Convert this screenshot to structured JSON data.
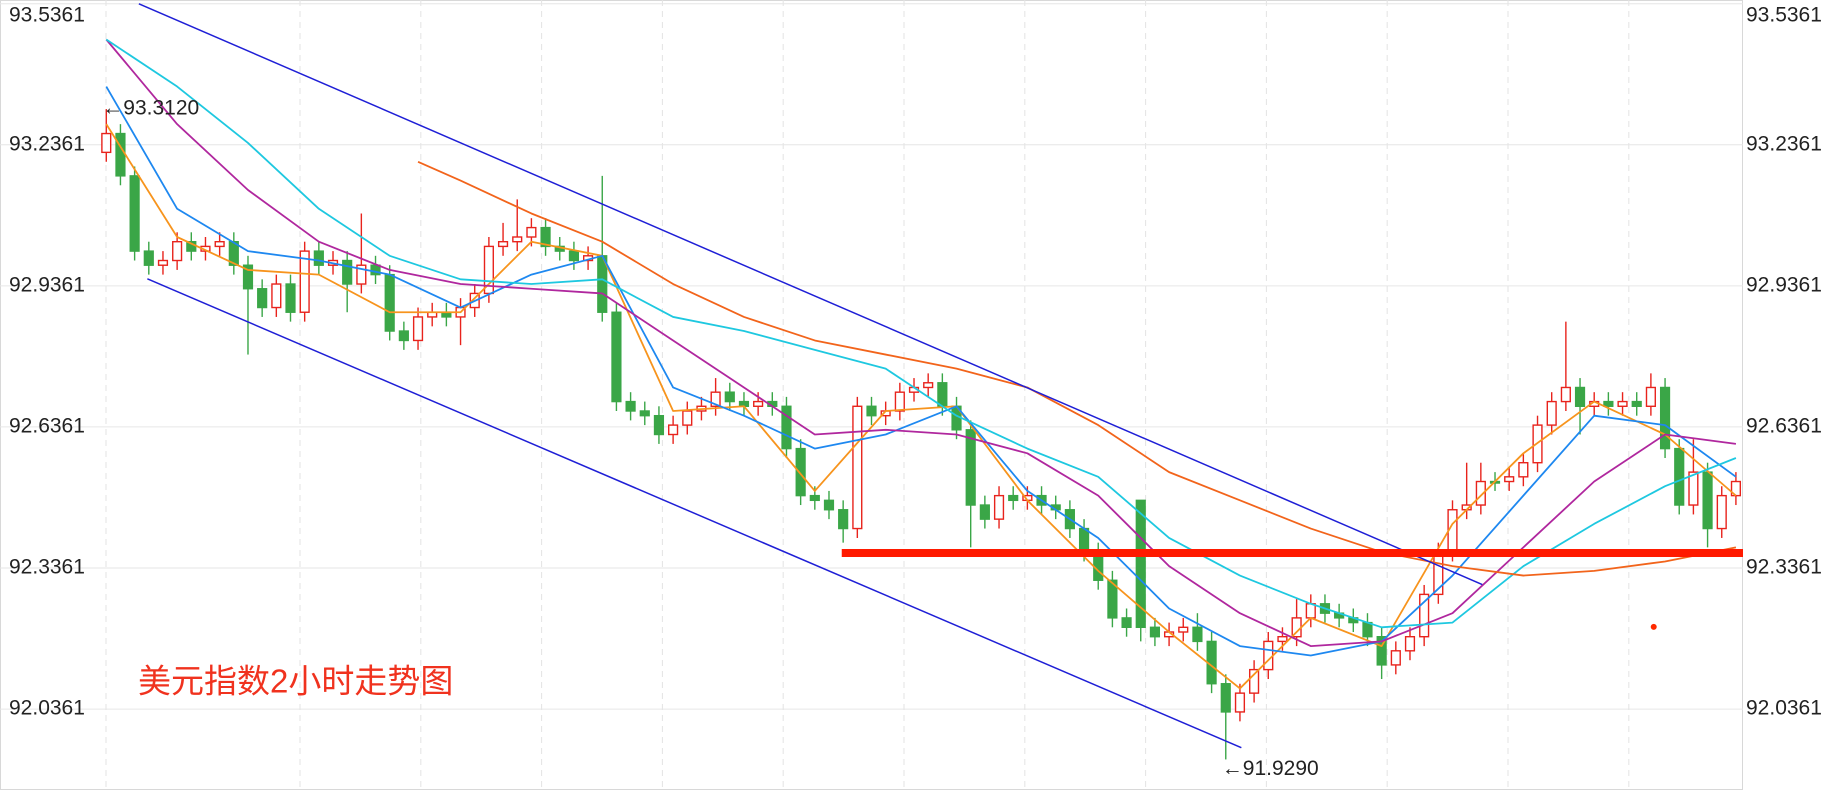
{
  "chart_data": {
    "type": "candlestick",
    "title": "美元指数2小时走势图",
    "title_color": "#f0321e",
    "categories": [
      null,
      null,
      null,
      null,
      null,
      null,
      null,
      null,
      null,
      null,
      null,
      null,
      null,
      null,
      null,
      null,
      null,
      null,
      null,
      null,
      null,
      null,
      null,
      null,
      null,
      null,
      null,
      null,
      null,
      null,
      null,
      null,
      null,
      null,
      null,
      null,
      null,
      null,
      null,
      null,
      null,
      null,
      null,
      null,
      null,
      null,
      null,
      null,
      null,
      null,
      null,
      null,
      null,
      null,
      null,
      null,
      null,
      null,
      null,
      null,
      null,
      null,
      null,
      null,
      null,
      null,
      null,
      null,
      null,
      null,
      null,
      null,
      null,
      null,
      null,
      null,
      null,
      null,
      null,
      null,
      null,
      null,
      null,
      null,
      null,
      null,
      null,
      null,
      null,
      null,
      null,
      null,
      null,
      null,
      null,
      null,
      null,
      null,
      null,
      null,
      null,
      null,
      null,
      null,
      null,
      null,
      null,
      null,
      null,
      null,
      null,
      null,
      null,
      null,
      null,
      null
    ],
    "open": [
      93.22,
      93.26,
      93.17,
      93.01,
      92.98,
      92.99,
      93.03,
      93.01,
      93.02,
      93.03,
      92.98,
      92.93,
      92.89,
      92.94,
      92.88,
      93.01,
      92.98,
      92.99,
      92.94,
      92.98,
      92.96,
      92.84,
      92.82,
      92.87,
      92.88,
      92.87,
      92.89,
      92.92,
      93.02,
      93.03,
      93.04,
      93.06,
      93.02,
      93.01,
      92.99,
      93.0,
      92.88,
      92.69,
      92.67,
      92.66,
      92.62,
      92.64,
      92.67,
      92.68,
      92.71,
      92.69,
      92.68,
      92.69,
      92.68,
      92.59,
      92.49,
      92.48,
      92.46,
      92.42,
      92.68,
      92.66,
      92.67,
      92.71,
      92.72,
      92.73,
      92.68,
      92.63,
      92.47,
      92.44,
      92.49,
      92.48,
      92.49,
      92.47,
      92.46,
      92.42,
      92.37,
      92.31,
      92.23,
      92.48,
      92.21,
      92.19,
      92.2,
      92.21,
      92.18,
      92.09,
      92.03,
      92.07,
      92.12,
      92.18,
      92.19,
      92.23,
      92.26,
      92.24,
      92.23,
      92.22,
      92.19,
      92.13,
      92.16,
      92.19,
      92.28,
      92.37,
      92.46,
      92.47,
      92.52,
      92.52,
      92.53,
      92.56,
      92.64,
      92.69,
      92.72,
      92.68,
      92.69,
      92.68,
      92.69,
      92.68,
      92.72,
      92.59,
      92.47,
      92.54,
      92.42,
      92.49
    ],
    "high": [
      93.312,
      93.28,
      93.19,
      93.03,
      93.01,
      93.05,
      93.05,
      93.04,
      93.05,
      93.05,
      93.0,
      92.95,
      92.96,
      92.96,
      93.03,
      93.03,
      93.01,
      93.01,
      93.09,
      93.0,
      92.98,
      92.86,
      92.89,
      92.9,
      92.9,
      92.91,
      92.94,
      93.04,
      93.07,
      93.12,
      93.08,
      93.08,
      93.04,
      93.03,
      93.02,
      93.17,
      92.9,
      92.71,
      92.69,
      92.68,
      92.66,
      92.69,
      92.7,
      92.74,
      92.73,
      92.71,
      92.71,
      92.71,
      92.7,
      92.61,
      92.51,
      92.5,
      92.48,
      92.7,
      92.7,
      92.69,
      92.73,
      92.74,
      92.75,
      92.75,
      92.7,
      92.65,
      92.49,
      92.51,
      92.51,
      92.51,
      92.51,
      92.49,
      92.48,
      92.44,
      92.39,
      92.33,
      92.25,
      92.48,
      92.23,
      92.22,
      92.23,
      92.24,
      92.2,
      92.11,
      92.09,
      92.14,
      92.2,
      92.21,
      92.27,
      92.28,
      92.28,
      92.26,
      92.25,
      92.24,
      92.21,
      92.18,
      92.21,
      92.3,
      92.39,
      92.48,
      92.56,
      92.56,
      92.54,
      92.55,
      92.58,
      92.66,
      92.71,
      92.86,
      92.74,
      92.71,
      92.71,
      92.71,
      92.71,
      92.75,
      92.74,
      92.61,
      92.61,
      92.56,
      92.51,
      92.54
    ],
    "low": [
      93.2,
      93.15,
      92.99,
      92.96,
      92.96,
      92.97,
      92.99,
      92.99,
      93.0,
      92.96,
      92.79,
      92.87,
      92.87,
      92.86,
      92.86,
      92.96,
      92.96,
      92.88,
      92.92,
      92.94,
      92.82,
      92.8,
      92.8,
      92.85,
      92.85,
      92.81,
      92.87,
      92.9,
      93.0,
      93.01,
      93.02,
      93.0,
      92.99,
      92.97,
      92.97,
      92.86,
      92.67,
      92.65,
      92.64,
      92.6,
      92.6,
      92.62,
      92.65,
      92.66,
      92.67,
      92.66,
      92.66,
      92.66,
      92.57,
      92.47,
      92.46,
      92.44,
      92.39,
      92.4,
      92.64,
      92.64,
      92.65,
      92.69,
      92.7,
      92.66,
      92.61,
      92.38,
      92.42,
      92.42,
      92.46,
      92.46,
      92.45,
      92.44,
      92.4,
      92.35,
      92.29,
      92.21,
      92.19,
      92.18,
      92.17,
      92.17,
      92.18,
      92.16,
      92.07,
      91.929,
      92.01,
      92.05,
      92.1,
      92.16,
      92.17,
      92.21,
      92.22,
      92.21,
      92.2,
      92.17,
      92.1,
      92.11,
      92.14,
      92.17,
      92.26,
      92.35,
      92.44,
      92.45,
      92.5,
      92.5,
      92.51,
      92.54,
      92.62,
      92.67,
      92.62,
      92.66,
      92.66,
      92.66,
      92.66,
      92.66,
      92.57,
      92.45,
      92.45,
      92.38,
      92.4,
      92.47
    ],
    "close": [
      93.26,
      93.17,
      93.01,
      92.98,
      92.99,
      93.03,
      93.01,
      93.02,
      93.03,
      92.98,
      92.93,
      92.89,
      92.94,
      92.88,
      93.01,
      92.98,
      92.99,
      92.94,
      92.98,
      92.96,
      92.84,
      92.82,
      92.87,
      92.88,
      92.87,
      92.89,
      92.92,
      93.02,
      93.03,
      93.04,
      93.06,
      93.02,
      93.01,
      92.99,
      93.0,
      92.88,
      92.69,
      92.67,
      92.66,
      92.62,
      92.64,
      92.67,
      92.68,
      92.71,
      92.69,
      92.68,
      92.69,
      92.68,
      92.59,
      92.49,
      92.48,
      92.46,
      92.42,
      92.68,
      92.66,
      92.67,
      92.71,
      92.72,
      92.73,
      92.68,
      92.63,
      92.47,
      92.44,
      92.49,
      92.48,
      92.49,
      92.47,
      92.46,
      92.42,
      92.37,
      92.31,
      92.23,
      92.21,
      92.21,
      92.19,
      92.2,
      92.21,
      92.18,
      92.09,
      92.03,
      92.07,
      92.12,
      92.18,
      92.19,
      92.23,
      92.26,
      92.24,
      92.23,
      92.22,
      92.19,
      92.13,
      92.16,
      92.19,
      92.28,
      92.37,
      92.46,
      92.47,
      92.52,
      92.52,
      92.53,
      92.56,
      92.64,
      92.69,
      92.72,
      92.68,
      92.69,
      92.68,
      92.69,
      92.68,
      92.72,
      92.59,
      92.47,
      92.54,
      92.42,
      92.49,
      92.52
    ],
    "up_color": "#e8231c",
    "down_color": "#3aa647",
    "series": [
      {
        "color": "#f7941d",
        "x": [
          0,
          5,
          10,
          15,
          20,
          25,
          30,
          35,
          40,
          45,
          50,
          55,
          60,
          65,
          70,
          75,
          80,
          85,
          90,
          95,
          100,
          105,
          110,
          115
        ],
        "values": [
          93.28,
          93.04,
          92.97,
          92.96,
          92.88,
          92.88,
          93.03,
          93.0,
          92.67,
          92.68,
          92.5,
          92.67,
          92.68,
          92.48,
          92.33,
          92.2,
          92.08,
          92.23,
          92.17,
          92.43,
          92.58,
          92.69,
          92.62,
          92.49
        ]
      },
      {
        "color": "#1e88f0",
        "x": [
          0,
          5,
          10,
          15,
          20,
          25,
          30,
          35,
          40,
          45,
          50,
          55,
          60,
          65,
          70,
          75,
          80,
          85,
          90,
          95,
          100,
          105,
          110,
          115
        ],
        "values": [
          93.36,
          93.1,
          93.01,
          92.99,
          92.96,
          92.89,
          92.96,
          93.0,
          92.72,
          92.66,
          92.59,
          92.62,
          92.68,
          92.5,
          92.4,
          92.25,
          92.17,
          92.15,
          92.18,
          92.32,
          92.49,
          92.66,
          92.64,
          92.53
        ]
      },
      {
        "color": "#b0279e",
        "x": [
          0,
          5,
          10,
          15,
          20,
          25,
          30,
          35,
          40,
          45,
          50,
          55,
          60,
          65,
          70,
          75,
          80,
          85,
          90,
          95,
          100,
          105,
          110,
          115
        ],
        "values": [
          93.46,
          93.28,
          93.14,
          93.03,
          92.97,
          92.94,
          92.93,
          92.92,
          92.82,
          92.72,
          92.62,
          92.63,
          92.62,
          92.58,
          92.49,
          92.34,
          92.24,
          92.17,
          92.18,
          92.24,
          92.38,
          92.52,
          92.62,
          92.6
        ]
      },
      {
        "color": "#1ec8e0",
        "x": [
          0,
          5,
          10,
          15,
          20,
          25,
          30,
          35,
          40,
          45,
          50,
          55,
          60,
          65,
          70,
          75,
          80,
          85,
          90,
          95,
          100,
          105,
          110,
          115
        ],
        "values": [
          93.46,
          93.36,
          93.24,
          93.1,
          93.0,
          92.95,
          92.94,
          92.95,
          92.87,
          92.84,
          92.8,
          92.76,
          92.66,
          92.59,
          92.53,
          92.4,
          92.32,
          92.26,
          92.21,
          92.22,
          92.34,
          92.43,
          92.51,
          92.57
        ]
      },
      {
        "color": "#f2641b",
        "x": [
          22,
          25,
          30,
          35,
          40,
          45,
          50,
          55,
          60,
          65,
          70,
          75,
          80,
          85,
          90,
          95,
          100,
          105,
          110,
          115
        ],
        "values": [
          93.2,
          93.16,
          93.09,
          93.03,
          92.94,
          92.87,
          92.82,
          92.79,
          92.76,
          92.72,
          92.64,
          92.54,
          92.48,
          92.42,
          92.37,
          92.34,
          92.32,
          92.33,
          92.35,
          92.38
        ]
      }
    ],
    "trend_lines": [
      {
        "color": "#1f1fd6",
        "width": 1.5,
        "x": [
          2.3,
          97.1
        ],
        "y": [
          93.536,
          92.301
        ]
      },
      {
        "color": "#1f1fd6",
        "width": 1.5,
        "x": [
          2.9,
          80.1
        ],
        "y": [
          92.951,
          91.954
        ]
      },
      {
        "color": "#ff1a00",
        "width": 8,
        "x": [
          51.9,
          115.5
        ],
        "y": [
          92.368,
          92.368
        ]
      }
    ],
    "markers": [
      {
        "color": "#ff2a00",
        "x": 109.2,
        "y": 92.211
      }
    ],
    "annotations": [
      {
        "text": "←93.3120",
        "x": 0,
        "y": 93.312
      },
      {
        "text": "←91.9290",
        "x": 79,
        "y": 91.929
      }
    ],
    "xlim": [
      -7.5,
      115.5
    ],
    "ylim": [
      91.864,
      93.544
    ],
    "yticks": [
      92.0361,
      92.3361,
      92.6361,
      92.9361,
      93.2361,
      93.5361
    ],
    "grid": true
  }
}
